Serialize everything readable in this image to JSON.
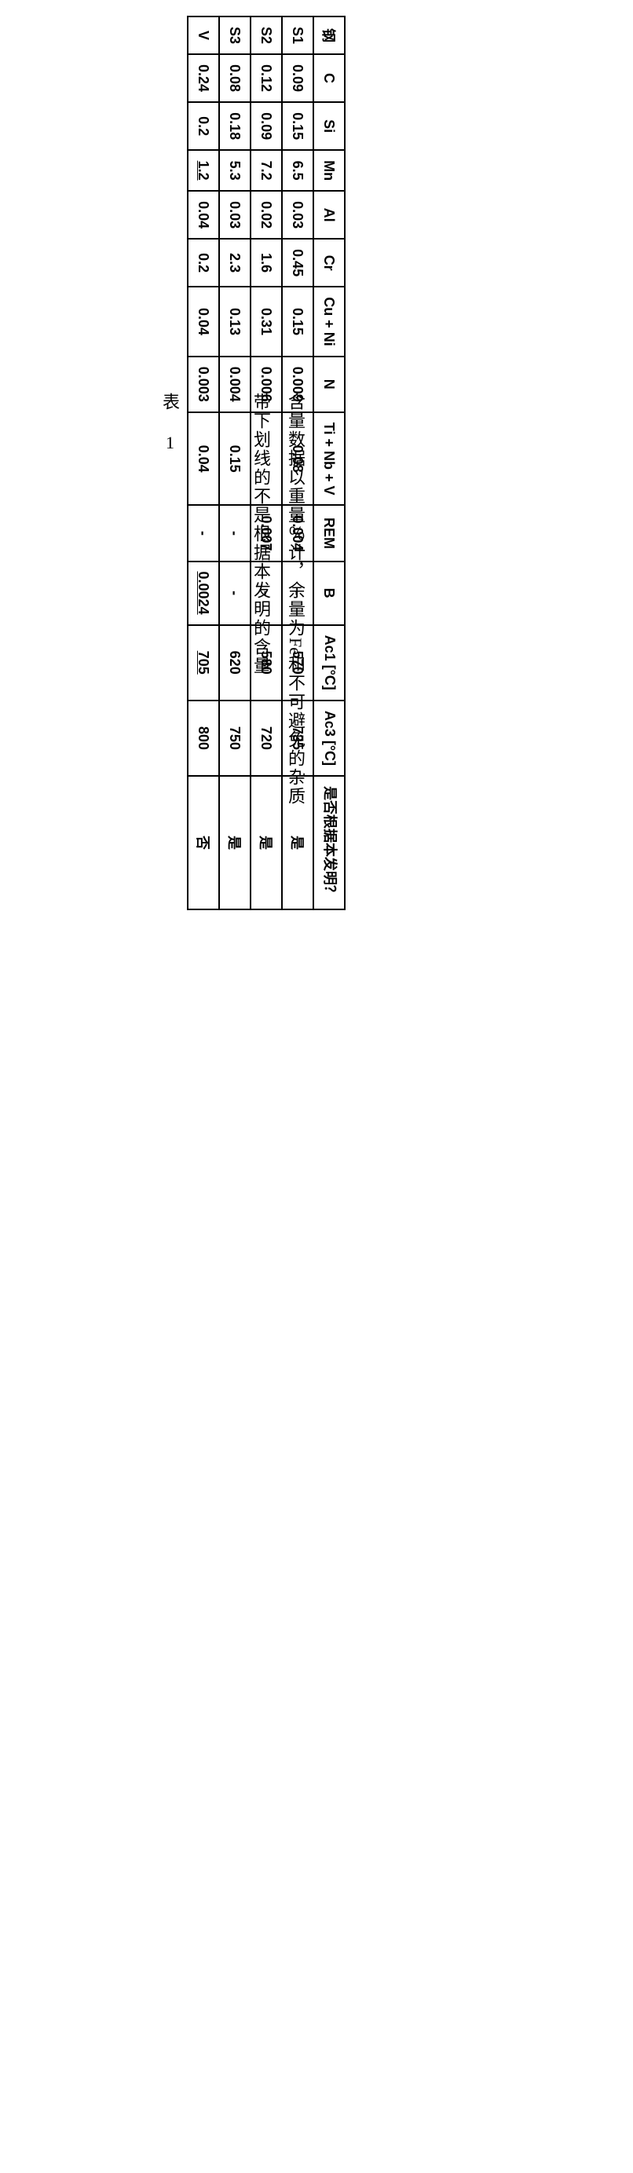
{
  "table": {
    "headers": {
      "steel": "钢",
      "c": "C",
      "si": "Si",
      "mn": "Mn",
      "al": "Al",
      "cr": "Cr",
      "cuni": "Cu + Ni",
      "n": "N",
      "tinbv": "Ti + Nb + V",
      "rem": "REM",
      "b": "B",
      "ac1": "Ac1 [°C]",
      "ac3": "Ac3 [°C]",
      "invent": "是否根据本发明？"
    },
    "rows": [
      {
        "steel": "S1",
        "c": "0.09",
        "si": "0.15",
        "mn": "6.5",
        "mn_u": false,
        "al": "0.03",
        "cr": "0.45",
        "cuni": "0.15",
        "n": "0.009",
        "tinbv": "0.08",
        "rem": "0.004",
        "b": "-",
        "b_u": false,
        "ac1": "570",
        "ac1_u": false,
        "ac3": "735",
        "invent": "是"
      },
      {
        "steel": "S2",
        "c": "0.12",
        "si": "0.09",
        "mn": "7.2",
        "mn_u": false,
        "al": "0.02",
        "cr": "1.6",
        "cuni": "0.31",
        "n": "0.006",
        "tinbv": "-",
        "rem": "0.007",
        "b": "-",
        "b_u": false,
        "ac1": "580",
        "ac1_u": false,
        "ac3": "720",
        "invent": "是"
      },
      {
        "steel": "S3",
        "c": "0.08",
        "si": "0.18",
        "mn": "5.3",
        "mn_u": false,
        "al": "0.03",
        "cr": "2.3",
        "cuni": "0.13",
        "n": "0.004",
        "tinbv": "0.15",
        "rem": "-",
        "b": "-",
        "b_u": false,
        "ac1": "620",
        "ac1_u": false,
        "ac3": "750",
        "invent": "是"
      },
      {
        "steel": "V",
        "c": "0.24",
        "si": "0.2",
        "mn": "1.2",
        "mn_u": true,
        "al": "0.04",
        "cr": "0.2",
        "cuni": "0.04",
        "n": "0.003",
        "tinbv": "0.04",
        "rem": "-",
        "b": "0.0024",
        "b_u": true,
        "ac1": "705",
        "ac1_u": true,
        "ac3": "800",
        "invent": "否"
      }
    ]
  },
  "notes": {
    "line1_a": "含量数据以重量％计，余量为",
    "line1_b": "Fe",
    "line1_c": "和不可避免的杂质",
    "line2": "带下划线的不是根据本发明的含量"
  },
  "caption": "表 1",
  "style": {
    "border_color": "#000000",
    "background": "#ffffff",
    "header_fontsize": 18,
    "cell_fontsize": 18,
    "note_fontsize": 22
  }
}
